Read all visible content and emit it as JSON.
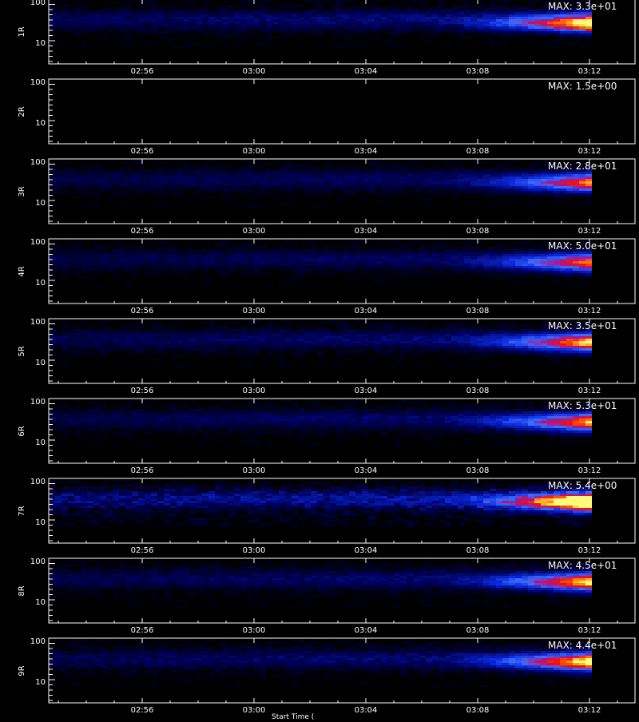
{
  "chart_data": {
    "type": "heatmap",
    "x_ticks": [
      "02:56",
      "03:00",
      "03:04",
      "03:08",
      "03:12"
    ],
    "y_ticks": [
      "100",
      "10"
    ],
    "xlabel": "Start Time (",
    "panels": [
      {
        "ylabel": "1R",
        "max_label": "MAX: 3.3e+01",
        "max": 33,
        "activity": 1.0
      },
      {
        "ylabel": "2R",
        "max_label": "MAX: 1.5e+00",
        "max": 1.5,
        "activity": 0.0
      },
      {
        "ylabel": "3R",
        "max_label": "MAX: 2.8e+01",
        "max": 28,
        "activity": 0.8
      },
      {
        "ylabel": "4R",
        "max_label": "MAX: 5.0e+01",
        "max": 50,
        "activity": 0.8
      },
      {
        "ylabel": "5R",
        "max_label": "MAX: 3.5e+01",
        "max": 35,
        "activity": 0.9
      },
      {
        "ylabel": "6R",
        "max_label": "MAX: 5.3e+01",
        "max": 53,
        "activity": 0.85
      },
      {
        "ylabel": "7R",
        "max_label": "MAX: 5.4e+00",
        "max": 5.4,
        "activity": 1.2
      },
      {
        "ylabel": "8R",
        "max_label": "MAX: 4.5e+01",
        "max": 45,
        "activity": 0.9
      },
      {
        "ylabel": "9R",
        "max_label": "MAX: 4.4e+01",
        "max": 44,
        "activity": 0.95
      }
    ]
  }
}
